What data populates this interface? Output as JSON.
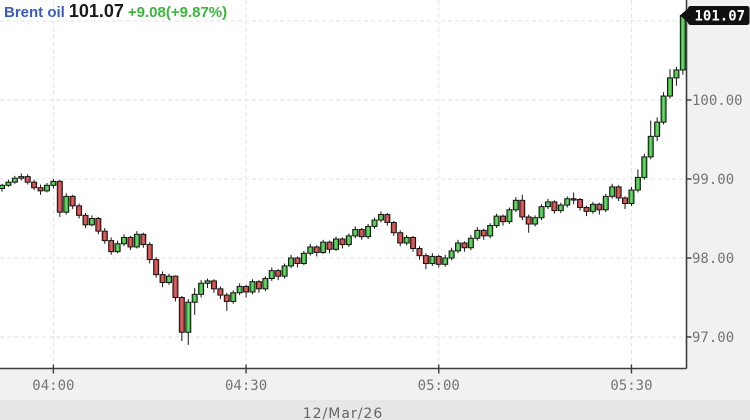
{
  "header": {
    "symbol": "Brent oil",
    "last": "101.07",
    "change": "+9.08(+9.87%)"
  },
  "price_badge": "101.07",
  "date_label": "12/Mar/26",
  "colors": {
    "outer_bg": "#f1f1f1",
    "plot_bg": "#ffffff",
    "grid": "#e3e3e3",
    "axis": "#3d3d3d",
    "tick_label": "#757575",
    "symbol_blue": "#3a5bc4",
    "last_dark": "#1a1a1a",
    "change_green": "#3cb53c",
    "up_dark": "#1a941a",
    "up_light": "#74dd74",
    "down_dark": "#aa2424",
    "down_light": "#e06a6a",
    "candle_outline": "#151515",
    "badge_bg": "#101010",
    "badge_text": "#ffffff",
    "footer_bg": "#e7e7e7",
    "date_text": "#666666"
  },
  "chart_data": {
    "type": "candlestick",
    "symbol": "Brent oil",
    "interval_minutes": 1,
    "start_time": "03:52",
    "last_price": 101.07,
    "x_ticks": [
      {
        "label": "04:00",
        "index": 8
      },
      {
        "label": "04:30",
        "index": 38
      },
      {
        "label": "05:00",
        "index": 68
      },
      {
        "label": "05:30",
        "index": 98
      }
    ],
    "y_ticks": [
      {
        "label": "100.00",
        "price": 100.0
      },
      {
        "label": "99.00",
        "price": 99.0
      },
      {
        "label": "98.00",
        "price": 98.0
      },
      {
        "label": "97.00",
        "price": 97.0
      }
    ],
    "grid_prices": [
      97.0,
      98.0,
      99.0,
      100.0,
      101.0
    ],
    "y_range": [
      96.8,
      101.2
    ],
    "ohlc": [
      [
        98.88,
        98.94,
        98.84,
        98.92
      ],
      [
        98.92,
        98.99,
        98.9,
        98.96
      ],
      [
        98.96,
        99.04,
        98.94,
        99.01
      ],
      [
        99.01,
        99.07,
        98.98,
        99.03
      ],
      [
        99.03,
        99.06,
        98.93,
        98.96
      ],
      [
        98.96,
        98.99,
        98.86,
        98.89
      ],
      [
        98.89,
        98.93,
        98.8,
        98.85
      ],
      [
        98.85,
        98.95,
        98.83,
        98.92
      ],
      [
        98.92,
        99.0,
        98.88,
        98.97
      ],
      [
        98.97,
        98.99,
        98.52,
        98.58
      ],
      [
        98.58,
        98.82,
        98.55,
        98.78
      ],
      [
        98.78,
        98.8,
        98.62,
        98.66
      ],
      [
        98.66,
        98.69,
        98.5,
        98.54
      ],
      [
        98.54,
        98.57,
        98.38,
        98.42
      ],
      [
        98.42,
        98.54,
        98.4,
        98.5
      ],
      [
        98.5,
        98.52,
        98.3,
        98.34
      ],
      [
        98.34,
        98.38,
        98.18,
        98.22
      ],
      [
        98.22,
        98.26,
        98.04,
        98.08
      ],
      [
        98.08,
        98.22,
        98.06,
        98.18
      ],
      [
        98.18,
        98.3,
        98.15,
        98.26
      ],
      [
        98.26,
        98.28,
        98.1,
        98.14
      ],
      [
        98.14,
        98.34,
        98.12,
        98.3
      ],
      [
        98.3,
        98.32,
        98.13,
        98.17
      ],
      [
        98.17,
        98.2,
        97.93,
        97.98
      ],
      [
        97.98,
        98.01,
        97.75,
        97.79
      ],
      [
        97.79,
        97.83,
        97.63,
        97.69
      ],
      [
        97.69,
        97.8,
        97.66,
        97.77
      ],
      [
        97.77,
        97.78,
        97.45,
        97.5
      ],
      [
        97.5,
        97.52,
        96.95,
        97.06
      ],
      [
        97.06,
        97.48,
        96.9,
        97.44
      ],
      [
        97.44,
        97.62,
        97.28,
        97.54
      ],
      [
        97.54,
        97.72,
        97.5,
        97.68
      ],
      [
        97.68,
        97.74,
        97.62,
        97.71
      ],
      [
        97.71,
        97.73,
        97.56,
        97.61
      ],
      [
        97.61,
        97.64,
        97.48,
        97.53
      ],
      [
        97.53,
        97.56,
        97.33,
        97.45
      ],
      [
        97.45,
        97.59,
        97.42,
        97.56
      ],
      [
        97.56,
        97.68,
        97.53,
        97.64
      ],
      [
        97.64,
        97.66,
        97.5,
        97.57
      ],
      [
        97.57,
        97.73,
        97.54,
        97.7
      ],
      [
        97.7,
        97.72,
        97.56,
        97.61
      ],
      [
        97.61,
        97.77,
        97.58,
        97.74
      ],
      [
        97.74,
        97.88,
        97.71,
        97.84
      ],
      [
        97.84,
        97.86,
        97.72,
        97.77
      ],
      [
        97.77,
        97.93,
        97.74,
        97.9
      ],
      [
        97.9,
        98.04,
        97.87,
        98.0
      ],
      [
        98.0,
        98.02,
        97.88,
        97.93
      ],
      [
        97.93,
        98.09,
        97.91,
        98.06
      ],
      [
        98.06,
        98.18,
        98.03,
        98.14
      ],
      [
        98.14,
        98.16,
        98.02,
        98.07
      ],
      [
        98.07,
        98.23,
        98.05,
        98.2
      ],
      [
        98.2,
        98.22,
        98.06,
        98.11
      ],
      [
        98.11,
        98.27,
        98.09,
        98.24
      ],
      [
        98.24,
        98.26,
        98.12,
        98.17
      ],
      [
        98.17,
        98.31,
        98.14,
        98.28
      ],
      [
        98.28,
        98.4,
        98.25,
        98.36
      ],
      [
        98.36,
        98.38,
        98.23,
        98.27
      ],
      [
        98.27,
        98.43,
        98.24,
        98.4
      ],
      [
        98.4,
        98.51,
        98.37,
        98.48
      ],
      [
        98.48,
        98.59,
        98.45,
        98.55
      ],
      [
        98.55,
        98.57,
        98.41,
        98.45
      ],
      [
        98.45,
        98.47,
        98.28,
        98.32
      ],
      [
        98.32,
        98.35,
        98.15,
        98.19
      ],
      [
        98.19,
        98.29,
        98.16,
        98.26
      ],
      [
        98.26,
        98.28,
        98.08,
        98.12
      ],
      [
        98.12,
        98.15,
        97.98,
        98.03
      ],
      [
        98.03,
        98.06,
        97.86,
        97.93
      ],
      [
        97.93,
        98.06,
        97.9,
        98.02
      ],
      [
        98.02,
        98.04,
        97.88,
        97.92
      ],
      [
        97.92,
        98.04,
        97.89,
        98.0
      ],
      [
        98.0,
        98.13,
        97.97,
        98.09
      ],
      [
        98.09,
        98.23,
        98.06,
        98.19
      ],
      [
        98.19,
        98.21,
        98.08,
        98.13
      ],
      [
        98.13,
        98.29,
        98.1,
        98.25
      ],
      [
        98.25,
        98.39,
        98.22,
        98.35
      ],
      [
        98.35,
        98.37,
        98.23,
        98.28
      ],
      [
        98.28,
        98.44,
        98.25,
        98.41
      ],
      [
        98.41,
        98.56,
        98.38,
        98.53
      ],
      [
        98.53,
        98.55,
        98.41,
        98.46
      ],
      [
        98.46,
        98.64,
        98.43,
        98.61
      ],
      [
        98.61,
        98.77,
        98.58,
        98.73
      ],
      [
        98.73,
        98.8,
        98.48,
        98.52
      ],
      [
        98.52,
        98.55,
        98.32,
        98.43
      ],
      [
        98.43,
        98.54,
        98.4,
        98.51
      ],
      [
        98.51,
        98.68,
        98.48,
        98.65
      ],
      [
        98.65,
        98.75,
        98.62,
        98.71
      ],
      [
        98.71,
        98.73,
        98.56,
        98.6
      ],
      [
        98.6,
        98.7,
        98.57,
        98.67
      ],
      [
        98.67,
        98.78,
        98.64,
        98.75
      ],
      [
        98.75,
        98.83,
        98.68,
        98.74
      ],
      [
        98.74,
        98.76,
        98.6,
        98.64
      ],
      [
        98.64,
        98.66,
        98.53,
        98.59
      ],
      [
        98.59,
        98.71,
        98.56,
        98.68
      ],
      [
        98.68,
        98.7,
        98.55,
        98.61
      ],
      [
        98.61,
        98.81,
        98.58,
        98.78
      ],
      [
        98.78,
        98.94,
        98.75,
        98.9
      ],
      [
        98.9,
        98.92,
        98.72,
        98.76
      ],
      [
        98.76,
        98.78,
        98.62,
        98.69
      ],
      [
        98.69,
        98.9,
        98.66,
        98.86
      ],
      [
        98.86,
        99.12,
        98.83,
        99.02
      ],
      [
        99.02,
        99.32,
        98.99,
        99.28
      ],
      [
        99.28,
        99.74,
        99.25,
        99.54
      ],
      [
        99.54,
        99.78,
        99.48,
        99.72
      ],
      [
        99.72,
        100.1,
        99.69,
        100.05
      ],
      [
        100.05,
        100.39,
        100.02,
        100.28
      ],
      [
        100.28,
        100.42,
        100.18,
        100.38
      ],
      [
        100.38,
        101.1,
        100.32,
        101.07
      ]
    ]
  }
}
